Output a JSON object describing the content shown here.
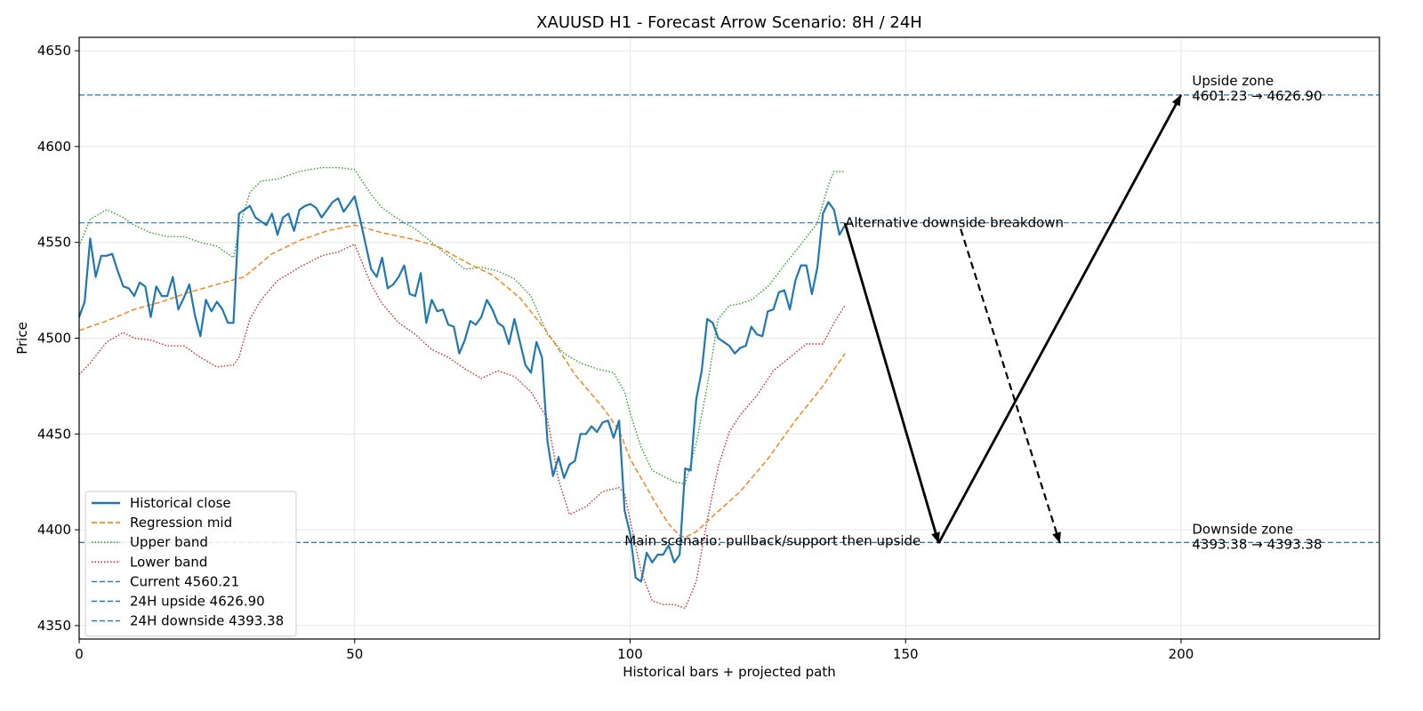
{
  "chart_data": {
    "type": "line",
    "title": "XAUUSD H1 - Forecast Arrow Scenario: 8H / 24H",
    "xlabel": "Historical bars + projected path",
    "ylabel": "Price",
    "xlim": [
      0,
      236
    ],
    "ylim": [
      4343,
      4657
    ],
    "xticks": [
      0,
      50,
      100,
      150,
      200
    ],
    "yticks": [
      4350,
      4400,
      4450,
      4500,
      4550,
      4600,
      4650
    ],
    "grid": true,
    "legend_position": "lower-left",
    "colors": {
      "close": "#1f77b4",
      "mid": "#ff7f0e",
      "upper": "#2ca02c",
      "lower": "#d62728",
      "hline": "#1f77b4",
      "arrow": "#000000"
    },
    "series": [
      {
        "name": "Historical close",
        "style": "solid",
        "x": [
          0,
          1,
          2,
          3,
          4,
          5,
          6,
          7,
          8,
          9,
          10,
          11,
          12,
          13,
          14,
          15,
          16,
          17,
          18,
          19,
          20,
          21,
          22,
          23,
          24,
          25,
          26,
          27,
          28,
          29,
          30,
          31,
          32,
          33,
          34,
          35,
          36,
          37,
          38,
          39,
          40,
          41,
          42,
          43,
          44,
          45,
          46,
          47,
          48,
          49,
          50,
          51,
          52,
          53,
          54,
          55,
          56,
          57,
          58,
          59,
          60,
          61,
          62,
          63,
          64,
          65,
          66,
          67,
          68,
          69,
          70,
          71,
          72,
          73,
          74,
          75,
          76,
          77,
          78,
          79,
          80,
          81,
          82,
          83,
          84,
          85,
          86,
          87,
          88,
          89,
          90,
          91,
          92,
          93,
          94,
          95,
          96,
          97,
          98,
          99,
          100,
          101,
          102,
          103,
          104,
          105,
          106,
          107,
          108,
          109,
          110,
          111,
          112,
          113,
          114,
          115,
          116,
          117,
          118,
          119,
          120,
          121,
          122,
          123,
          124,
          125,
          126,
          127,
          128,
          129,
          130,
          131,
          132,
          133,
          134,
          135,
          136,
          137,
          138,
          139
        ],
        "y": [
          4511,
          4519,
          4552,
          4532,
          4543,
          4543,
          4544,
          4535,
          4527,
          4526,
          4522,
          4529,
          4527,
          4511,
          4527,
          4522,
          4522,
          4532,
          4515,
          4521,
          4528,
          4512,
          4501,
          4520,
          4514,
          4519,
          4515,
          4508,
          4508,
          4565,
          4567,
          4569,
          4563,
          4561,
          4559,
          4565,
          4554,
          4563,
          4565,
          4556,
          4567,
          4569,
          4570,
          4568,
          4563,
          4567,
          4571,
          4573,
          4566,
          4570,
          4574,
          4562,
          4549,
          4536,
          4532,
          4542,
          4526,
          4528,
          4532,
          4538,
          4523,
          4522,
          4534,
          4508,
          4520,
          4514,
          4515,
          4507,
          4506,
          4492,
          4499,
          4509,
          4507,
          4511,
          4520,
          4515,
          4508,
          4506,
          4497,
          4510,
          4498,
          4486,
          4482,
          4498,
          4490,
          4446,
          4428,
          4438,
          4427,
          4434,
          4436,
          4450,
          4450,
          4454,
          4451,
          4456,
          4457,
          4448,
          4457,
          4410,
          4398,
          4375,
          4373,
          4388,
          4383,
          4387,
          4387,
          4392,
          4383,
          4387,
          4432,
          4431,
          4468,
          4483,
          4510,
          4508,
          4500,
          4498,
          4496,
          4492,
          4495,
          4496,
          4506,
          4502,
          4501,
          4514,
          4515,
          4524,
          4525,
          4515,
          4530,
          4538,
          4538,
          4523,
          4537,
          4565,
          4571,
          4567,
          4554,
          4559
        ]
      },
      {
        "name": "Regression mid",
        "style": "dashed",
        "x": [
          0,
          5,
          10,
          15,
          20,
          25,
          30,
          35,
          40,
          45,
          50,
          55,
          60,
          65,
          70,
          75,
          80,
          85,
          90,
          95,
          98,
          100,
          103,
          105,
          107,
          109,
          110,
          112,
          115,
          120,
          125,
          130,
          135,
          139
        ],
        "y": [
          4504,
          4509,
          4515,
          4519,
          4524,
          4528,
          4532,
          4544,
          4551,
          4556,
          4559,
          4555,
          4552,
          4548,
          4540,
          4533,
          4521,
          4503,
          4481,
          4464,
          4452,
          4437,
          4422,
          4412,
          4403,
          4397,
          4396,
          4399,
          4407,
          4420,
          4437,
          4457,
          4475,
          4492
        ]
      },
      {
        "name": "Upper band",
        "style": "dotted",
        "x": [
          0,
          2,
          5,
          8,
          10,
          13,
          16,
          19,
          22,
          25,
          28,
          29,
          31,
          33,
          36,
          40,
          44,
          47,
          50,
          53,
          55,
          58,
          61,
          64,
          67,
          70,
          73,
          76,
          79,
          82,
          85,
          88,
          91,
          94,
          97,
          99,
          100,
          102,
          104,
          106,
          108,
          110,
          112,
          114,
          116,
          118,
          120,
          122,
          125,
          128,
          131,
          134,
          136,
          137,
          138,
          139
        ],
        "y": [
          4548,
          4562,
          4567,
          4563,
          4559,
          4555,
          4553,
          4553,
          4550,
          4548,
          4542,
          4557,
          4576,
          4582,
          4583,
          4587,
          4589,
          4589,
          4588,
          4575,
          4568,
          4562,
          4557,
          4550,
          4543,
          4536,
          4537,
          4535,
          4531,
          4522,
          4502,
          4492,
          4487,
          4484,
          4482,
          4472,
          4461,
          4443,
          4431,
          4428,
          4425,
          4424,
          4445,
          4475,
          4510,
          4517,
          4518,
          4520,
          4527,
          4538,
          4549,
          4560,
          4580,
          4587,
          4587,
          4587
        ],
        "style_note": "dotted"
      },
      {
        "name": "Lower band",
        "style": "dotted",
        "x": [
          0,
          2,
          5,
          8,
          10,
          13,
          16,
          19,
          22,
          25,
          28,
          29,
          31,
          33,
          36,
          40,
          44,
          47,
          50,
          53,
          55,
          58,
          61,
          64,
          67,
          70,
          73,
          76,
          79,
          82,
          85,
          87,
          89,
          92,
          95,
          98,
          99,
          100,
          102,
          104,
          106,
          108,
          110,
          112,
          114,
          116,
          118,
          120,
          123,
          126,
          129,
          132,
          135,
          137,
          139
        ],
        "y": [
          4481,
          4487,
          4498,
          4503,
          4500,
          4499,
          4496,
          4496,
          4490,
          4485,
          4486,
          4490,
          4510,
          4520,
          4530,
          4537,
          4543,
          4545,
          4549,
          4528,
          4518,
          4508,
          4502,
          4494,
          4490,
          4484,
          4479,
          4483,
          4480,
          4472,
          4458,
          4426,
          4408,
          4412,
          4420,
          4422,
          4419,
          4405,
          4378,
          4363,
          4361,
          4361,
          4359,
          4373,
          4405,
          4433,
          4451,
          4460,
          4470,
          4483,
          4490,
          4497,
          4497,
          4508,
          4517
        ]
      }
    ],
    "hlines": [
      {
        "name": "Current 4560.21",
        "y": 4560.21
      },
      {
        "name": "24H upside 4626.90",
        "y": 4626.9
      },
      {
        "name": "24H downside 4393.38",
        "y": 4393.38
      }
    ],
    "arrows": [
      {
        "from": [
          139,
          4560
        ],
        "to": [
          156,
          4393
        ],
        "style": "solid"
      },
      {
        "from": [
          156,
          4393
        ],
        "to": [
          200,
          4627
        ],
        "style": "solid"
      },
      {
        "from": [
          160,
          4557
        ],
        "to": [
          178,
          4393
        ],
        "style": "dashed"
      }
    ],
    "annotations": [
      {
        "text": "Alternative downside breakdown",
        "x": 139,
        "y": 4558
      },
      {
        "text": "Main scenario: pullback/support then upside",
        "x": 99,
        "y": 4392
      },
      {
        "lines": [
          "Upside zone",
          "4601.23 → 4626.90"
        ],
        "x": 202,
        "y": 4632
      },
      {
        "lines": [
          "Downside zone",
          "4393.38 → 4393.38"
        ],
        "x": 202,
        "y": 4398
      }
    ]
  }
}
